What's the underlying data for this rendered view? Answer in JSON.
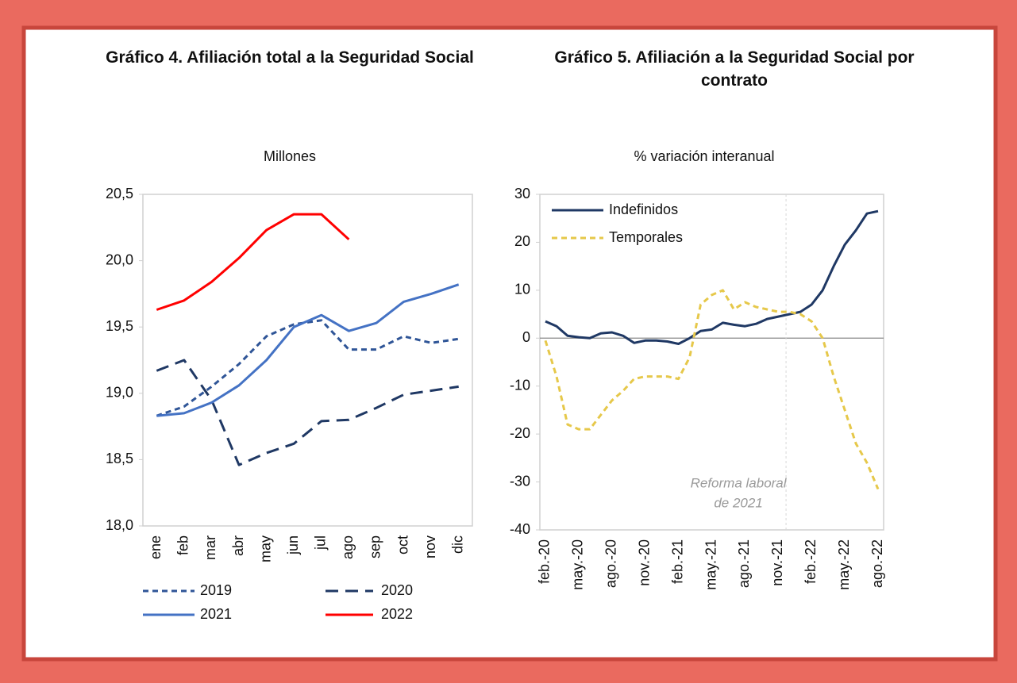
{
  "chart_data": [
    {
      "type": "line",
      "title": "Gráfico 4. Afiliación total a la Seguridad Social",
      "subtitle": "Millones",
      "categories": [
        "ene",
        "feb",
        "mar",
        "abr",
        "may",
        "jun",
        "jul",
        "ago",
        "sep",
        "oct",
        "nov",
        "dic"
      ],
      "ylim": [
        18,
        20.5
      ],
      "yticks": [
        {
          "value": 18,
          "label": "18,0"
        },
        {
          "value": 18.5,
          "label": "18,5"
        },
        {
          "value": 19,
          "label": "19,0"
        },
        {
          "value": 19.5,
          "label": "19,5"
        },
        {
          "value": 20,
          "label": "20,0"
        },
        {
          "value": 20.5,
          "label": "20,5"
        }
      ],
      "legend": "bottom",
      "series": [
        {
          "name": "2019",
          "color": "#2f5597",
          "line_style": "dashed",
          "values": [
            18.83,
            18.9,
            19.05,
            19.22,
            19.43,
            19.52,
            19.55,
            19.33,
            19.33,
            19.43,
            19.38,
            19.41
          ]
        },
        {
          "name": "2020",
          "color": "#1f3864",
          "line_style": "long-dashed",
          "values": [
            19.17,
            19.25,
            18.95,
            18.46,
            18.55,
            18.62,
            18.79,
            18.8,
            18.89,
            18.99,
            19.02,
            19.05
          ]
        },
        {
          "name": "2021",
          "color": "#4472c4",
          "line_style": "solid",
          "values": [
            18.83,
            18.85,
            18.93,
            19.06,
            19.25,
            19.5,
            19.59,
            19.47,
            19.53,
            19.69,
            19.75,
            19.82
          ]
        },
        {
          "name": "2022",
          "color": "#ff0000",
          "line_style": "solid",
          "values": [
            19.63,
            19.7,
            19.84,
            20.02,
            20.23,
            20.35,
            20.35,
            20.16,
            null,
            null,
            null,
            null
          ]
        }
      ]
    },
    {
      "type": "line",
      "title": "Gráfico 5. Afiliación a la Seguridad Social por contrato",
      "subtitle": "% variación interanual",
      "categories": [
        "feb.-20",
        null,
        null,
        "may.-20",
        null,
        null,
        "ago.-20",
        null,
        null,
        "nov.-20",
        null,
        null,
        "feb.-21",
        null,
        null,
        "may.-21",
        null,
        null,
        "ago.-21",
        null,
        null,
        "nov.-21",
        null,
        null,
        "feb.-22",
        null,
        null,
        "may.-22",
        null,
        null,
        "ago.-22"
      ],
      "ylim": [
        -40,
        30
      ],
      "yticks": [
        -40,
        -30,
        -20,
        -10,
        0,
        10,
        20,
        30
      ],
      "legend": "upper left",
      "annotation": [
        "Reforma laboral",
        "de 2021"
      ],
      "series": [
        {
          "name": "Indefinidos",
          "color": "#1f3864",
          "line_style": "solid",
          "values": [
            3.5,
            2.5,
            0.5,
            0.2,
            0,
            1,
            1.2,
            0.5,
            -1,
            -0.5,
            -0.5,
            -0.7,
            -1.2,
            0,
            1.5,
            1.8,
            3.2,
            2.8,
            2.5,
            3,
            4,
            4.5,
            5,
            5.5,
            7,
            10,
            15,
            19.5,
            22.5,
            26,
            26.5
          ]
        },
        {
          "name": "Temporales",
          "color": "#e6c84a",
          "line_style": "dashed",
          "values": [
            -0.5,
            -8,
            -18,
            -19,
            -19,
            -16,
            -13,
            -11,
            -8.5,
            -8,
            -8,
            -8,
            -8.5,
            -4,
            7,
            9,
            10,
            6,
            7.5,
            6.5,
            6,
            5.5,
            5.5,
            5,
            3.5,
            0,
            -8,
            -15,
            -22,
            -26,
            -31.5
          ]
        }
      ]
    }
  ]
}
